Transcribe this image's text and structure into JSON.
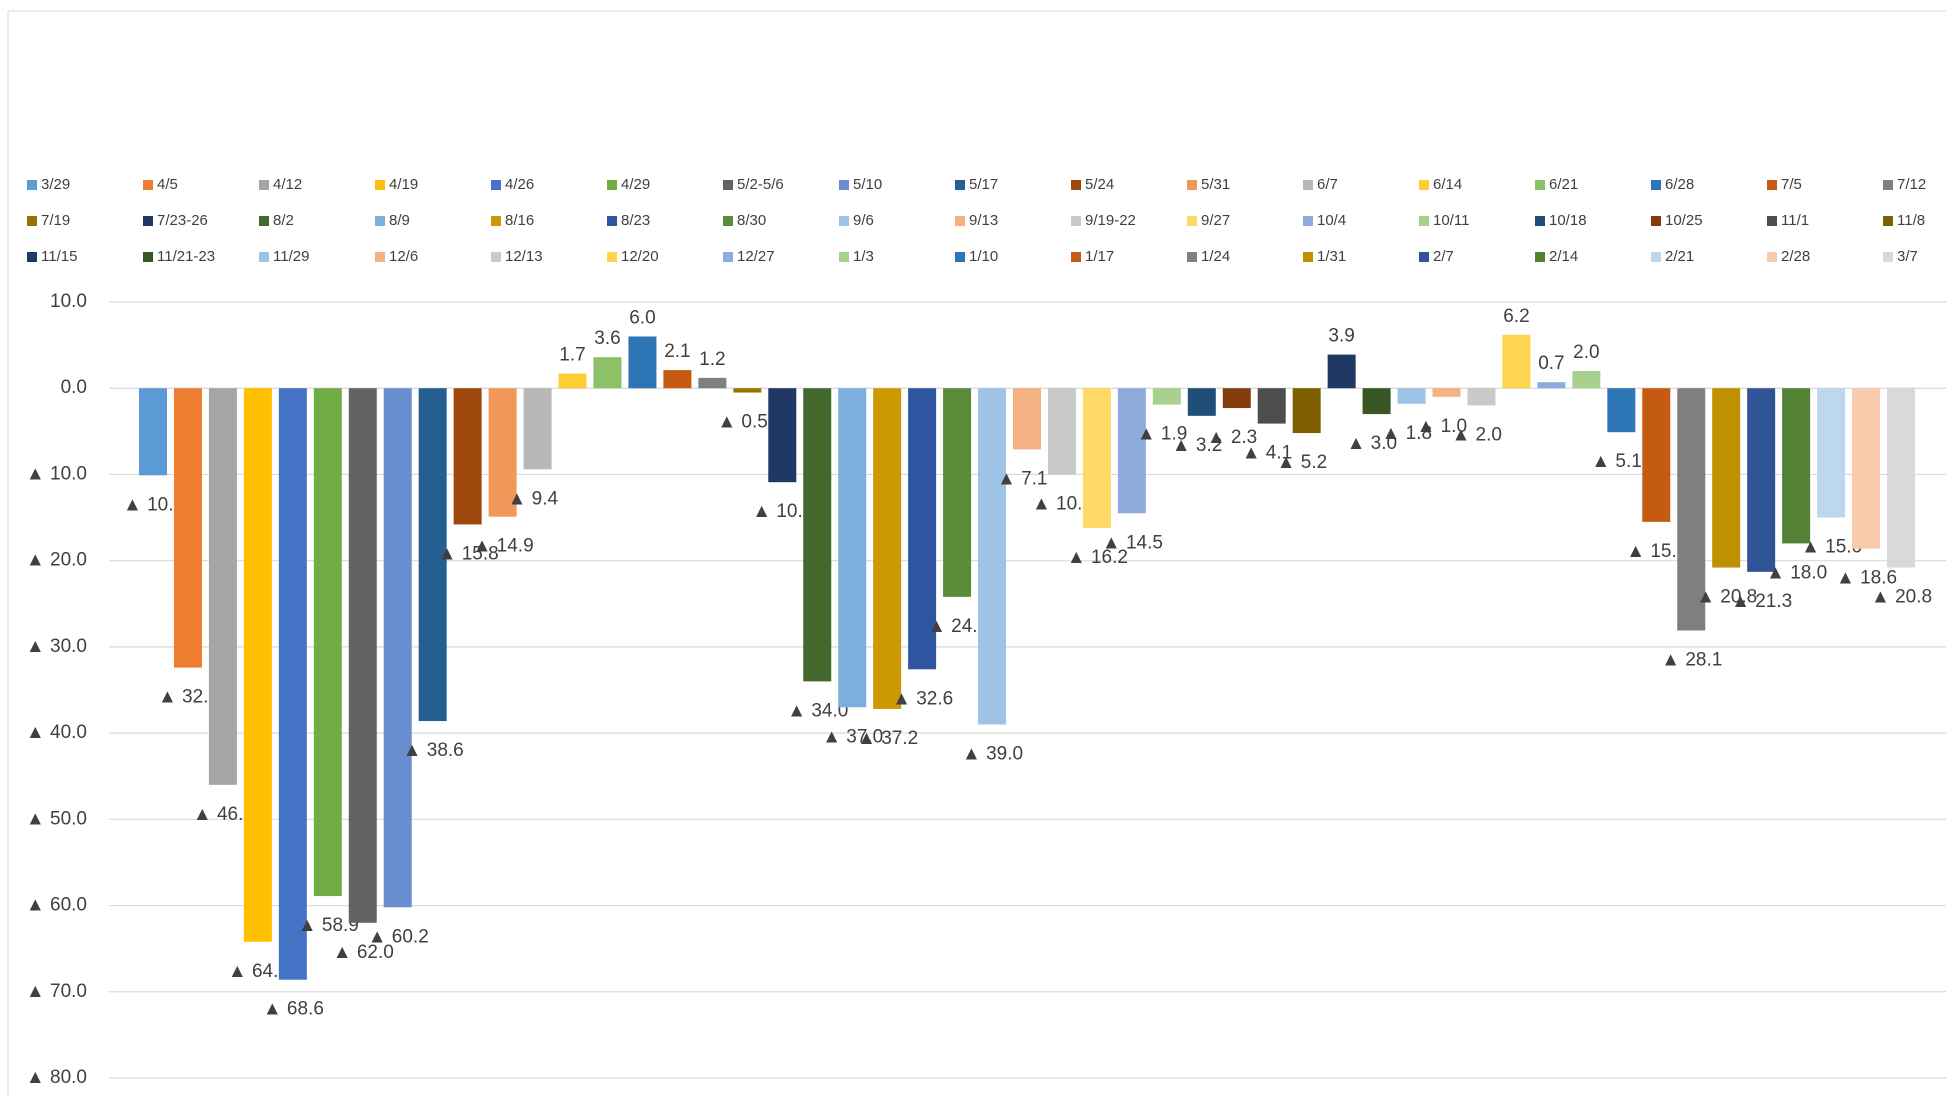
{
  "chart_data": {
    "type": "bar",
    "categories": [
      null
    ],
    "ylim": [
      -80,
      10
    ],
    "yticks": [
      {
        "value": 10,
        "label": "10.0"
      },
      {
        "value": 0,
        "label": "0.0"
      },
      {
        "value": -10,
        "label": "▲ 10.0"
      },
      {
        "value": -20,
        "label": "▲ 20.0"
      },
      {
        "value": -30,
        "label": "▲ 30.0"
      },
      {
        "value": -40,
        "label": "▲ 40.0"
      },
      {
        "value": -50,
        "label": "▲ 50.0"
      },
      {
        "value": -60,
        "label": "▲ 60.0"
      },
      {
        "value": -70,
        "label": "▲ 70.0"
      },
      {
        "value": -80,
        "label": "▲ 80.0"
      }
    ],
    "grid": true,
    "legend": "top",
    "series": [
      {
        "name": "3/29",
        "color": "#5B9BD5",
        "values": [
          -10.1
        ],
        "value_labels": [
          "▲ 10.1"
        ]
      },
      {
        "name": "4/5",
        "color": "#ED7D31",
        "values": [
          -32.4
        ],
        "value_labels": [
          "▲ 32.4"
        ]
      },
      {
        "name": "4/12",
        "color": "#A5A5A5",
        "values": [
          -46.0
        ],
        "value_labels": [
          "▲ 46.0"
        ]
      },
      {
        "name": "4/19",
        "color": "#FFC000",
        "values": [
          -64.2
        ],
        "value_labels": [
          "▲ 64.2"
        ]
      },
      {
        "name": "4/26",
        "color": "#4472C4",
        "values": [
          -68.6
        ],
        "value_labels": [
          "▲ 68.6"
        ]
      },
      {
        "name": "4/29",
        "color": "#70AD47",
        "values": [
          -58.9
        ],
        "value_labels": [
          "▲ 58.9"
        ]
      },
      {
        "name": "5/2-5/6",
        "color": "#636363",
        "values": [
          -62.0
        ],
        "value_labels": [
          "▲ 62.0"
        ]
      },
      {
        "name": "5/10",
        "color": "#698ED0",
        "values": [
          -60.2
        ],
        "value_labels": [
          "▲ 60.2"
        ]
      },
      {
        "name": "5/17",
        "color": "#255E91",
        "values": [
          -38.6
        ],
        "value_labels": [
          "▲ 38.6"
        ]
      },
      {
        "name": "5/24",
        "color": "#9E480E",
        "values": [
          -15.8
        ],
        "value_labels": [
          "▲ 15.8"
        ]
      },
      {
        "name": "5/31",
        "color": "#F1975A",
        "values": [
          -14.9
        ],
        "value_labels": [
          "▲ 14.9"
        ]
      },
      {
        "name": "6/7",
        "color": "#B7B7B7",
        "values": [
          -9.4
        ],
        "value_labels": [
          "▲ 9.4"
        ]
      },
      {
        "name": "6/14",
        "color": "#FFCD33",
        "values": [
          1.7
        ],
        "value_labels": [
          "1.7"
        ]
      },
      {
        "name": "6/21",
        "color": "#8CC168",
        "values": [
          3.6
        ],
        "value_labels": [
          "3.6"
        ]
      },
      {
        "name": "6/28",
        "color": "#2E75B6",
        "values": [
          6.0
        ],
        "value_labels": [
          "6.0"
        ]
      },
      {
        "name": "7/5",
        "color": "#C55A11",
        "values": [
          2.1
        ],
        "value_labels": [
          "2.1"
        ]
      },
      {
        "name": "7/12",
        "color": "#7F7F7F",
        "values": [
          1.2
        ],
        "value_labels": [
          "1.2"
        ]
      },
      {
        "name": "7/19",
        "color": "#997300",
        "values": [
          -0.5
        ],
        "value_labels": [
          "▲ 0.5"
        ]
      },
      {
        "name": "7/23-26",
        "color": "#203864",
        "values": [
          -10.9
        ],
        "value_labels": [
          "▲ 10.9"
        ]
      },
      {
        "name": "8/2",
        "color": "#43682B",
        "values": [
          -34.0
        ],
        "value_labels": [
          "▲ 34.0"
        ]
      },
      {
        "name": "8/9",
        "color": "#7CAFDD",
        "values": [
          -37.0
        ],
        "value_labels": [
          "▲ 37.0"
        ]
      },
      {
        "name": "8/16",
        "color": "#CC9900",
        "values": [
          -37.2
        ],
        "value_labels": [
          "▲ 37.2"
        ]
      },
      {
        "name": "8/23",
        "color": "#2F55A0",
        "values": [
          -32.6
        ],
        "value_labels": [
          "▲ 32.6"
        ]
      },
      {
        "name": "8/30",
        "color": "#5B8C3A",
        "values": [
          -24.2
        ],
        "value_labels": [
          "▲ 24.2"
        ]
      },
      {
        "name": "9/6",
        "color": "#9DC3E6",
        "values": [
          -39.0
        ],
        "value_labels": [
          "▲ 39.0"
        ]
      },
      {
        "name": "9/13",
        "color": "#F4B183",
        "values": [
          -7.1
        ],
        "value_labels": [
          "▲ 7.1"
        ]
      },
      {
        "name": "9/19-22",
        "color": "#C9C9C9",
        "values": [
          -10.0
        ],
        "value_labels": [
          "▲ 10.0"
        ]
      },
      {
        "name": "9/27",
        "color": "#FFD966",
        "values": [
          -16.2
        ],
        "value_labels": [
          "▲ 16.2"
        ]
      },
      {
        "name": "10/4",
        "color": "#8FAADC",
        "values": [
          -14.5
        ],
        "value_labels": [
          "▲ 14.5"
        ]
      },
      {
        "name": "10/11",
        "color": "#A9D18E",
        "values": [
          -1.9
        ],
        "value_labels": [
          "▲ 1.9"
        ]
      },
      {
        "name": "10/18",
        "color": "#1F4E79",
        "values": [
          -3.2
        ],
        "value_labels": [
          "▲ 3.2"
        ]
      },
      {
        "name": "10/25",
        "color": "#843C0C",
        "values": [
          -2.3
        ],
        "value_labels": [
          "▲ 2.3"
        ]
      },
      {
        "name": "11/1",
        "color": "#4D4D4D",
        "values": [
          -4.1
        ],
        "value_labels": [
          "▲ 4.1"
        ]
      },
      {
        "name": "11/8",
        "color": "#7F6000",
        "values": [
          -5.2
        ],
        "value_labels": [
          "▲ 5.2"
        ]
      },
      {
        "name": "11/15",
        "color": "#1F3864",
        "values": [
          3.9
        ],
        "value_labels": [
          "3.9"
        ]
      },
      {
        "name": "11/21-23",
        "color": "#375623",
        "values": [
          -3.0
        ],
        "value_labels": [
          "▲ 3.0"
        ]
      },
      {
        "name": "11/29",
        "color": "#9DC3E6",
        "values": [
          -1.8
        ],
        "value_labels": [
          "▲ 1.8"
        ]
      },
      {
        "name": "12/6",
        "color": "#F4B183",
        "values": [
          -1.0
        ],
        "value_labels": [
          "▲ 1.0"
        ]
      },
      {
        "name": "12/13",
        "color": "#C9C9C9",
        "values": [
          -2.0
        ],
        "value_labels": [
          "▲ 2.0"
        ]
      },
      {
        "name": "12/20",
        "color": "#FFD54F",
        "values": [
          6.2
        ],
        "value_labels": [
          "6.2"
        ]
      },
      {
        "name": "12/27",
        "color": "#8FAADC",
        "values": [
          0.7
        ],
        "value_labels": [
          "0.7"
        ]
      },
      {
        "name": "1/3",
        "color": "#A9D18E",
        "values": [
          2.0
        ],
        "value_labels": [
          "2.0"
        ]
      },
      {
        "name": "1/10",
        "color": "#2E75B6",
        "values": [
          -5.1
        ],
        "value_labels": [
          "▲ 5.1"
        ]
      },
      {
        "name": "1/17",
        "color": "#C55A11",
        "values": [
          -15.5
        ],
        "value_labels": [
          "▲ 15.5"
        ]
      },
      {
        "name": "1/24",
        "color": "#7F7F7F",
        "values": [
          -28.1
        ],
        "value_labels": [
          "▲ 28.1"
        ]
      },
      {
        "name": "1/31",
        "color": "#BF9000",
        "values": [
          -20.8
        ],
        "value_labels": [
          "▲ 20.8"
        ]
      },
      {
        "name": "2/7",
        "color": "#2F5597",
        "values": [
          -21.3
        ],
        "value_labels": [
          "▲ 21.3"
        ]
      },
      {
        "name": "2/14",
        "color": "#548235",
        "values": [
          -18.0
        ],
        "value_labels": [
          "▲ 18.0"
        ]
      },
      {
        "name": "2/21",
        "color": "#BDD7EE",
        "values": [
          -15.0
        ],
        "value_labels": [
          "▲ 15.0"
        ]
      },
      {
        "name": "2/28",
        "color": "#F8CBAD",
        "values": [
          -18.6
        ],
        "value_labels": [
          "▲ 18.6"
        ]
      },
      {
        "name": "3/7",
        "color": "#D9D9D9",
        "values": [
          -20.8
        ],
        "value_labels": [
          "▲ 20.8"
        ]
      }
    ]
  }
}
